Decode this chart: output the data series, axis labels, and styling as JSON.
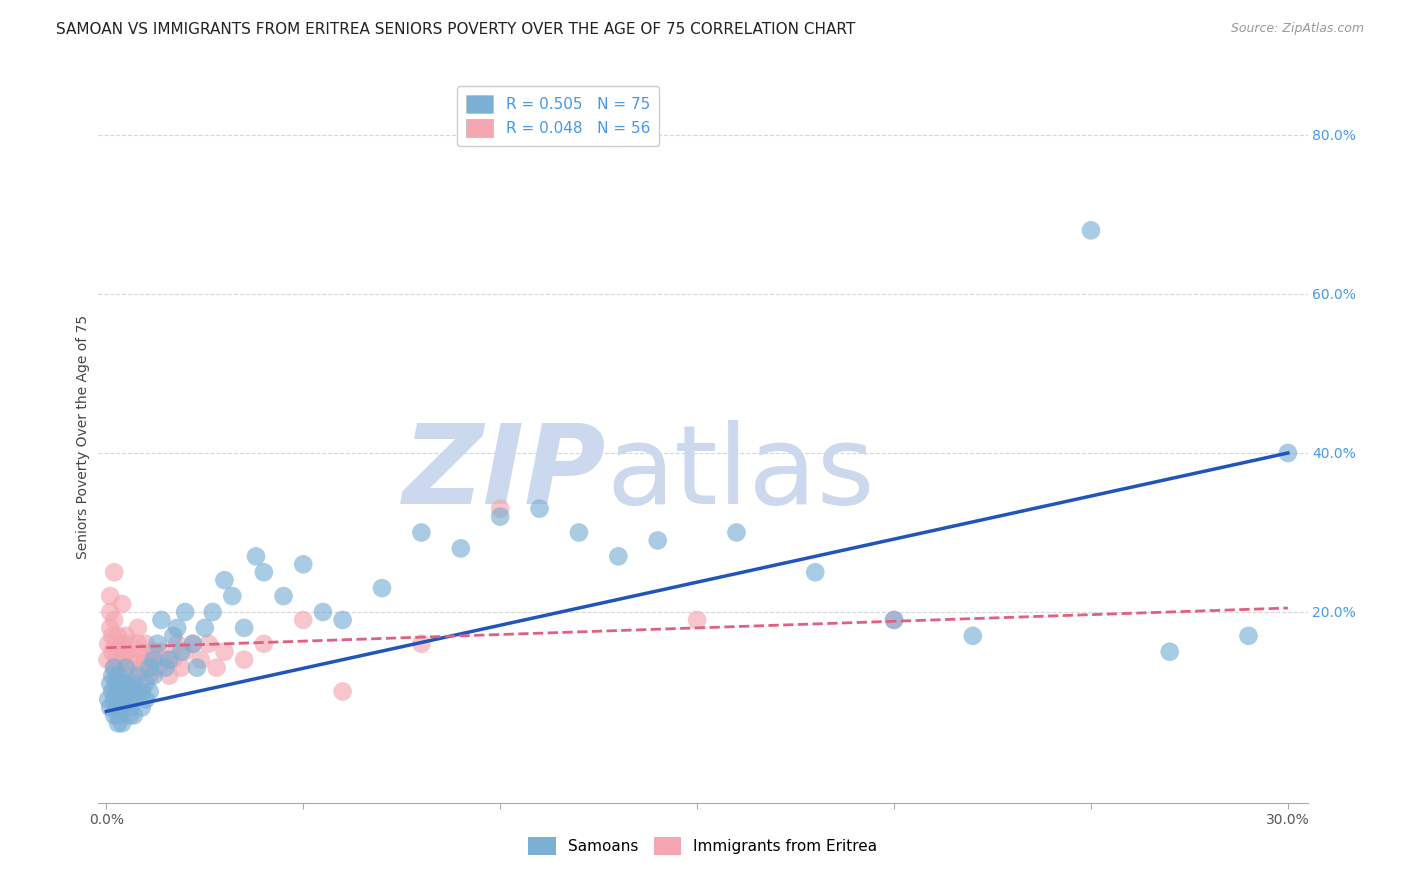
{
  "title": "SAMOAN VS IMMIGRANTS FROM ERITREA SENIORS POVERTY OVER THE AGE OF 75 CORRELATION CHART",
  "source": "Source: ZipAtlas.com",
  "ylabel": "Seniors Poverty Over the Age of 75",
  "xlim": [
    -0.002,
    0.305
  ],
  "ylim": [
    -0.04,
    0.88
  ],
  "xticks": [
    0.0,
    0.05,
    0.1,
    0.15,
    0.2,
    0.25,
    0.3
  ],
  "xtick_labels": [
    "0.0%",
    "",
    "",
    "",
    "",
    "",
    "30.0%"
  ],
  "yticks_right": [
    0.2,
    0.4,
    0.6,
    0.8
  ],
  "ytick_labels_right": [
    "20.0%",
    "40.0%",
    "60.0%",
    "80.0%"
  ],
  "samoan_color": "#7bafd4",
  "eritrea_color": "#f4a7b0",
  "samoan_line_color": "#2255bb",
  "eritrea_line_color": "#e06080",
  "watermark_color": "#ccd8ee",
  "background_color": "#ffffff",
  "grid_color": "#cccccc",
  "title_fontsize": 11,
  "axis_label_fontsize": 10,
  "tick_fontsize": 10,
  "legend_fontsize": 11,
  "samoan_x": [
    0.0005,
    0.001,
    0.001,
    0.0015,
    0.0015,
    0.002,
    0.002,
    0.002,
    0.0025,
    0.0025,
    0.003,
    0.003,
    0.003,
    0.003,
    0.003,
    0.004,
    0.004,
    0.004,
    0.004,
    0.005,
    0.005,
    0.005,
    0.006,
    0.006,
    0.006,
    0.007,
    0.007,
    0.007,
    0.008,
    0.008,
    0.009,
    0.009,
    0.01,
    0.01,
    0.011,
    0.011,
    0.012,
    0.012,
    0.013,
    0.014,
    0.015,
    0.016,
    0.017,
    0.018,
    0.019,
    0.02,
    0.022,
    0.023,
    0.025,
    0.027,
    0.03,
    0.032,
    0.035,
    0.038,
    0.04,
    0.045,
    0.05,
    0.055,
    0.06,
    0.07,
    0.08,
    0.09,
    0.1,
    0.11,
    0.12,
    0.13,
    0.14,
    0.16,
    0.18,
    0.2,
    0.22,
    0.25,
    0.27,
    0.29,
    0.3
  ],
  "samoan_y": [
    0.09,
    0.11,
    0.08,
    0.1,
    0.12,
    0.07,
    0.09,
    0.13,
    0.08,
    0.11,
    0.06,
    0.08,
    0.1,
    0.12,
    0.07,
    0.08,
    0.09,
    0.11,
    0.06,
    0.09,
    0.11,
    0.13,
    0.07,
    0.1,
    0.08,
    0.09,
    0.11,
    0.07,
    0.1,
    0.12,
    0.08,
    0.1,
    0.09,
    0.11,
    0.1,
    0.13,
    0.12,
    0.14,
    0.16,
    0.19,
    0.13,
    0.14,
    0.17,
    0.18,
    0.15,
    0.2,
    0.16,
    0.13,
    0.18,
    0.2,
    0.24,
    0.22,
    0.18,
    0.27,
    0.25,
    0.22,
    0.26,
    0.2,
    0.19,
    0.23,
    0.3,
    0.28,
    0.32,
    0.33,
    0.3,
    0.27,
    0.29,
    0.3,
    0.25,
    0.19,
    0.17,
    0.68,
    0.15,
    0.17,
    0.4
  ],
  "eritrea_x": [
    0.0003,
    0.0005,
    0.001,
    0.001,
    0.001,
    0.0015,
    0.0015,
    0.002,
    0.002,
    0.002,
    0.0025,
    0.0025,
    0.003,
    0.003,
    0.003,
    0.003,
    0.004,
    0.004,
    0.004,
    0.005,
    0.005,
    0.005,
    0.006,
    0.006,
    0.007,
    0.007,
    0.008,
    0.008,
    0.009,
    0.009,
    0.01,
    0.01,
    0.011,
    0.011,
    0.012,
    0.013,
    0.014,
    0.015,
    0.016,
    0.017,
    0.018,
    0.019,
    0.02,
    0.022,
    0.024,
    0.026,
    0.028,
    0.03,
    0.035,
    0.04,
    0.05,
    0.06,
    0.08,
    0.1,
    0.15,
    0.2
  ],
  "eritrea_y": [
    0.14,
    0.16,
    0.18,
    0.2,
    0.22,
    0.15,
    0.17,
    0.13,
    0.19,
    0.25,
    0.14,
    0.16,
    0.11,
    0.13,
    0.15,
    0.17,
    0.14,
    0.16,
    0.21,
    0.13,
    0.15,
    0.17,
    0.14,
    0.16,
    0.12,
    0.14,
    0.16,
    0.18,
    0.13,
    0.15,
    0.14,
    0.16,
    0.12,
    0.14,
    0.15,
    0.13,
    0.15,
    0.14,
    0.12,
    0.14,
    0.16,
    0.13,
    0.15,
    0.16,
    0.14,
    0.16,
    0.13,
    0.15,
    0.14,
    0.16,
    0.19,
    0.1,
    0.16,
    0.33,
    0.19,
    0.19
  ],
  "samoan_line_x0": 0.0,
  "samoan_line_y0": 0.075,
  "samoan_line_x1": 0.3,
  "samoan_line_y1": 0.4,
  "eritrea_line_x0": 0.0,
  "eritrea_line_y0": 0.155,
  "eritrea_line_x1": 0.3,
  "eritrea_line_y1": 0.205
}
